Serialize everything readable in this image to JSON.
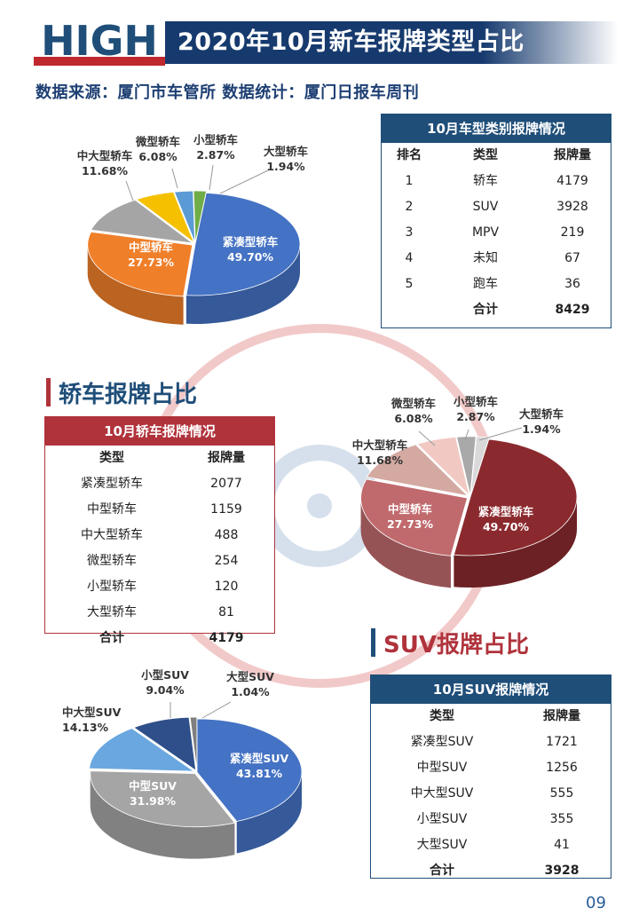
{
  "header": {
    "logo_text": "HIGH",
    "title": "2020年10月新车报牌类型占比",
    "source": "数据来源：厦门市车管所  数据统计：厦门日报车周刊"
  },
  "page_number": "09",
  "colors": {
    "navy": "#1f4e79",
    "red": "#b0333c",
    "blue_slice": "#4472c4",
    "orange_slice": "#f07f2a",
    "gray_slice": "#a5a5a5",
    "yellow_slice": "#f5c000",
    "lightblue_slice": "#5b9bd5",
    "green_slice": "#70ad47"
  },
  "sections": {
    "sedan_title": "轿车报牌占比",
    "suv_title": "SUV报牌占比"
  },
  "type_table": {
    "title": "10月车型类别报牌情况",
    "headers": [
      "排名",
      "类型",
      "报牌量"
    ],
    "rows": [
      [
        "1",
        "轿车",
        "4179"
      ],
      [
        "2",
        "SUV",
        "3928"
      ],
      [
        "3",
        "MPV",
        "219"
      ],
      [
        "4",
        "未知",
        "67"
      ],
      [
        "5",
        "跑车",
        "36"
      ]
    ],
    "total_label": "合计",
    "total_value": "8429"
  },
  "sedan_table": {
    "title": "10月轿车报牌情况",
    "headers": [
      "类型",
      "报牌量"
    ],
    "rows": [
      [
        "紧凑型轿车",
        "2077"
      ],
      [
        "中型轿车",
        "1159"
      ],
      [
        "中大型轿车",
        "488"
      ],
      [
        "微型轿车",
        "254"
      ],
      [
        "小型轿车",
        "120"
      ],
      [
        "大型轿车",
        "81"
      ]
    ],
    "total_label": "合计",
    "total_value": "4179"
  },
  "suv_table": {
    "title": "10月SUV报牌情况",
    "headers": [
      "类型",
      "报牌量"
    ],
    "rows": [
      [
        "紧凑型SUV",
        "1721"
      ],
      [
        "中型SUV",
        "1256"
      ],
      [
        "中大型SUV",
        "555"
      ],
      [
        "小型SUV",
        "355"
      ],
      [
        "大型SUV",
        "41"
      ]
    ],
    "total_label": "合计",
    "total_value": "3928"
  },
  "chart_data": [
    {
      "type": "pie",
      "title": "",
      "labels": [
        "紧凑型轿车",
        "中型轿车",
        "中大型轿车",
        "微型轿车",
        "小型轿车",
        "大型轿车"
      ],
      "values": [
        49.7,
        27.73,
        11.68,
        6.08,
        2.87,
        1.94
      ],
      "value_labels": [
        "49.70%",
        "27.73%",
        "11.68%",
        "6.08%",
        "2.87%",
        "1.94%"
      ],
      "colors": [
        "#4472c4",
        "#f07f2a",
        "#a5a5a5",
        "#f5c000",
        "#5b9bd5",
        "#70ad47"
      ]
    },
    {
      "type": "pie",
      "title": "",
      "labels": [
        "紧凑型轿车",
        "中型轿车",
        "中大型轿车",
        "微型轿车",
        "小型轿车",
        "大型轿车"
      ],
      "values": [
        49.7,
        27.73,
        11.68,
        6.08,
        2.87,
        1.94
      ],
      "value_labels": [
        "49.70%",
        "27.73%",
        "11.68%",
        "6.08%",
        "2.87%",
        "1.94%"
      ],
      "colors": [
        "#8b2a2e",
        "#c06a6e",
        "#d4a9a2",
        "#f1c9c2",
        "#a9a9a9",
        "#d9d9d9"
      ]
    },
    {
      "type": "pie",
      "title": "",
      "labels": [
        "紧凑型SUV",
        "中型SUV",
        "中大型SUV",
        "小型SUV",
        "大型SUV"
      ],
      "values": [
        43.81,
        31.98,
        14.13,
        9.04,
        1.04
      ],
      "value_labels": [
        "43.81%",
        "31.98%",
        "14.13%",
        "9.04%",
        "1.04%"
      ],
      "colors": [
        "#4472c4",
        "#a5a5a5",
        "#6aa7e0",
        "#2e4f8a",
        "#7f7f7f"
      ]
    }
  ]
}
